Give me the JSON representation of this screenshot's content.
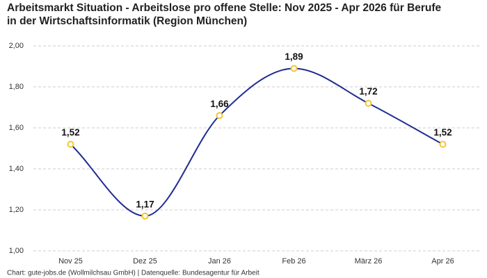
{
  "chart_data": {
    "type": "line",
    "title": "Arbeitsmarkt Situation - Arbeitslose pro offene Stelle: Nov 2025 - Apr 2026 für Berufe in der Wirtschaftsinformatik (Region München)",
    "source": "Chart: gute-jobs.de (Wollmilchsau GmbH) | Datenquelle: Bundesagentur für Arbeit",
    "categories": [
      "Nov 25",
      "Dez 25",
      "Jan 26",
      "Feb 26",
      "März 26",
      "Apr 26"
    ],
    "values": [
      1.52,
      1.17,
      1.66,
      1.89,
      1.72,
      1.52
    ],
    "value_labels": [
      "1,52",
      "1,17",
      "1,66",
      "1,89",
      "1,72",
      "1,52"
    ],
    "color": "#1f2d8f",
    "marker_color": "#f2c530",
    "ylim": [
      1,
      2
    ],
    "yticks": [
      {
        "value": 1,
        "label": "1,00"
      },
      {
        "value": 1.2,
        "label": "1,20"
      },
      {
        "value": 1.4,
        "label": "1,40"
      },
      {
        "value": 1.6,
        "label": "1,60"
      },
      {
        "value": 1.8,
        "label": "1,80"
      },
      {
        "value": 2,
        "label": "2,00"
      }
    ],
    "grid": true
  }
}
